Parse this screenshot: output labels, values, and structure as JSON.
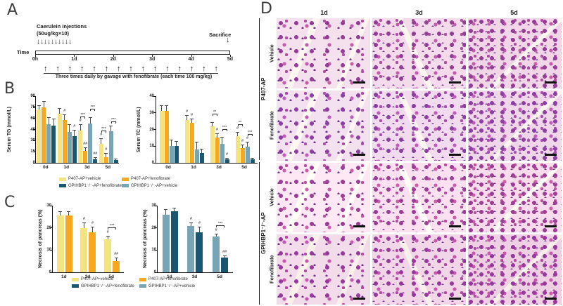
{
  "figure": {
    "panel_a": {
      "label": "A",
      "injection_label_line1": "Caerulein injections",
      "injection_label_line2": "(50ug/kg×10)",
      "injection_arrow_count": 10,
      "arrow_down": "↓",
      "arrow_up": "↑",
      "sacrifice_label": "Sacrifice",
      "sacrifice_arrow": "↓",
      "time_label": "Time",
      "timeline_ticks": [
        "0h",
        "1d",
        "2d",
        "3d",
        "4d",
        "5d"
      ],
      "gavage_arrow_count": 15,
      "gavage_text": "Three times daily by gavage with fenofibrate (each time 100 mg/kg)"
    },
    "panel_b": {
      "label": "B"
    },
    "panel_c": {
      "label": "C"
    },
    "panel_d": {
      "label": "D",
      "columns": [
        "1d",
        "3d",
        "5d"
      ],
      "groups": [
        {
          "name": "P407-AP",
          "rows": [
            "Vehicle",
            "Fenofibrate"
          ]
        },
        {
          "name": "GPIHBP1⁻/⁻-AP",
          "rows": [
            "Vehicle",
            "Fenofibrate"
          ]
        }
      ]
    },
    "legend": {
      "items": [
        {
          "label": "P407-AP+vehicle",
          "color": "#F3E383"
        },
        {
          "label": "P407-AP+fenofibrate",
          "color": "#F7A823"
        },
        {
          "label": "GPIHBP1⁻/⁻-AP+fenofibrate",
          "color": "#1A566F"
        },
        {
          "label": "GPIHBP1⁻/⁻-AP+vehicle",
          "color": "#78A5B6"
        }
      ]
    },
    "colors": {
      "p407_vehicle": "#F3E383",
      "p407_fenofibrate": "#F7A823",
      "gpihbp1_vehicle": "#78A5B6",
      "gpihbp1_fenofibrate": "#1A566F"
    }
  },
  "chart_data": [
    {
      "id": "serum_tg",
      "type": "bar",
      "ylabel": "Serum TG (mmol/L)",
      "categories": [
        "0d",
        "1d",
        "3d",
        "5d"
      ],
      "ylim": [
        0,
        90
      ],
      "yticks": [
        0,
        15,
        30,
        45,
        60,
        75,
        90
      ],
      "series": [
        {
          "name": "P407-AP+vehicle",
          "color": "#F3E383",
          "values": [
            72,
            66,
            44,
            26
          ],
          "errors": [
            6,
            8,
            8,
            7
          ]
        },
        {
          "name": "P407-AP+fenofibrate",
          "color": "#F7A823",
          "values": [
            75,
            58,
            16,
            8
          ],
          "errors": [
            8,
            7,
            5,
            5
          ]
        },
        {
          "name": "GPIHBP1-/--AP+vehicle",
          "color": "#78A5B6",
          "values": [
            52,
            42,
            53,
            43
          ],
          "errors": [
            10,
            10,
            9,
            7
          ]
        },
        {
          "name": "GPIHBP1-/--AP+fenofibrate",
          "color": "#1A566F",
          "values": [
            50,
            36,
            5,
            4
          ],
          "errors": [
            10,
            9,
            3,
            2
          ]
        }
      ],
      "marks": [
        {
          "cat": 1,
          "series": 1,
          "text": "#"
        },
        {
          "cat": 1,
          "series": 3,
          "text": "#"
        },
        {
          "cat": 2,
          "series": 0,
          "text": "#"
        },
        {
          "cat": 2,
          "series": 1,
          "text": "##"
        },
        {
          "cat": 2,
          "series": 3,
          "text": "##"
        },
        {
          "cat": 3,
          "series": 0,
          "text": "#"
        },
        {
          "cat": 3,
          "series": 1,
          "text": "#"
        }
      ],
      "brackets": [
        {
          "cat": 2,
          "from": 0,
          "to": 1,
          "text": "***"
        },
        {
          "cat": 2,
          "from": 2,
          "to": 3,
          "text": "***"
        },
        {
          "cat": 3,
          "from": 0,
          "to": 1,
          "text": "***"
        },
        {
          "cat": 3,
          "from": 2,
          "to": 3,
          "text": "***"
        }
      ]
    },
    {
      "id": "serum_tc",
      "type": "bar",
      "ylabel": "Serum TC (mmol/L)",
      "categories": [
        "0d",
        "1d",
        "3d",
        "5d"
      ],
      "ylim": [
        0,
        40
      ],
      "yticks": [
        0,
        10,
        20,
        30,
        40
      ],
      "series": [
        {
          "name": "P407-AP+vehicle",
          "color": "#F3E383",
          "values": [
            31,
            25.5,
            22,
            16
          ],
          "errors": [
            3.5,
            3,
            2.5,
            2.5
          ]
        },
        {
          "name": "P407-AP+fenofibrate",
          "color": "#F7A823",
          "values": [
            31,
            24,
            15,
            9
          ],
          "errors": [
            3.5,
            2.5,
            2.5,
            2
          ]
        },
        {
          "name": "GPIHBP1-/--AP+vehicle",
          "color": "#78A5B6",
          "values": [
            10,
            8,
            11.5,
            9.5
          ],
          "errors": [
            4,
            4.5,
            4,
            3
          ]
        },
        {
          "name": "GPIHBP1-/--AP+fenofibrate",
          "color": "#1A566F",
          "values": [
            10,
            6,
            2,
            2
          ],
          "errors": [
            3,
            2.5,
            1,
            1
          ]
        }
      ],
      "marks": [
        {
          "cat": 1,
          "series": 0,
          "text": "#"
        },
        {
          "cat": 1,
          "series": 1,
          "text": "#"
        },
        {
          "cat": 2,
          "series": 1,
          "text": "#"
        },
        {
          "cat": 2,
          "series": 3,
          "text": "#"
        },
        {
          "cat": 3,
          "series": 0,
          "text": "#"
        },
        {
          "cat": 3,
          "series": 1,
          "text": "#"
        },
        {
          "cat": 3,
          "series": 2,
          "text": "#"
        }
      ],
      "brackets": [
        {
          "cat": 2,
          "from": 0,
          "to": 1,
          "text": "**"
        },
        {
          "cat": 2,
          "from": 2,
          "to": 3,
          "text": "***"
        },
        {
          "cat": 3,
          "from": 0,
          "to": 1,
          "text": "**"
        },
        {
          "cat": 3,
          "from": 2,
          "to": 3,
          "text": "***"
        }
      ]
    },
    {
      "id": "necrosis_p407",
      "type": "bar",
      "ylabel": "Necrosis of pancreas (%)",
      "categories": [
        "1d",
        "3d",
        "5d"
      ],
      "ylim": [
        0,
        30
      ],
      "yticks": [
        0,
        10,
        20,
        30
      ],
      "series": [
        {
          "name": "P407-AP+vehicle",
          "color": "#F3E383",
          "values": [
            25.5,
            20,
            15
          ],
          "errors": [
            2,
            2.5,
            1.5
          ]
        },
        {
          "name": "P407-AP+fenofibrate",
          "color": "#F7A823",
          "values": [
            25.5,
            18,
            5
          ],
          "errors": [
            2,
            2.5,
            1.5
          ]
        }
      ],
      "marks": [
        {
          "cat": 1,
          "series": 0,
          "text": "#"
        },
        {
          "cat": 1,
          "series": 1,
          "text": "#"
        },
        {
          "cat": 2,
          "series": 0,
          "text": "#"
        },
        {
          "cat": 2,
          "series": 1,
          "text": "##"
        }
      ],
      "brackets": [
        {
          "cat": 2,
          "from": 0,
          "to": 1,
          "text": "***"
        }
      ]
    },
    {
      "id": "necrosis_gpihbp1",
      "type": "bar",
      "ylabel": "Necrosis of pancreas (%)",
      "categories": [
        "1d",
        "3d",
        "5d"
      ],
      "ylim": [
        0,
        30
      ],
      "yticks": [
        0,
        10,
        20,
        30
      ],
      "series": [
        {
          "name": "GPIHBP1-/--AP+vehicle",
          "color": "#78A5B6",
          "values": [
            26,
            21,
            16
          ],
          "errors": [
            2.5,
            1.5,
            1.5
          ]
        },
        {
          "name": "GPIHBP1-/--AP+fenofibrate",
          "color": "#1A566F",
          "values": [
            27.5,
            18,
            6.5
          ],
          "errors": [
            1.5,
            2.5,
            1
          ]
        }
      ],
      "marks": [
        {
          "cat": 1,
          "series": 0,
          "text": "#"
        },
        {
          "cat": 1,
          "series": 1,
          "text": "#"
        },
        {
          "cat": 2,
          "series": 0,
          "text": "#"
        },
        {
          "cat": 2,
          "series": 1,
          "text": "##"
        }
      ],
      "brackets": [
        {
          "cat": 2,
          "from": 0,
          "to": 1,
          "text": "***"
        }
      ]
    }
  ]
}
